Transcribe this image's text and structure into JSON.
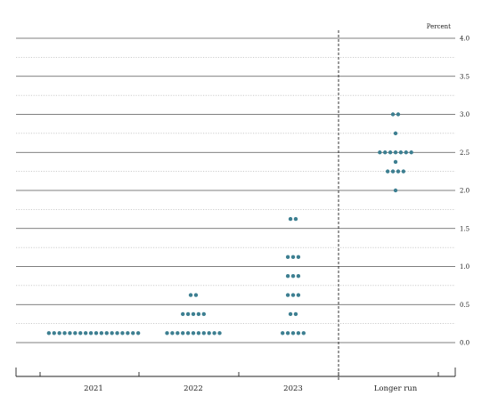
{
  "chart_data": {
    "type": "scatter",
    "title": "",
    "ylabel": "Percent",
    "ylim": [
      0,
      4
    ],
    "y_ticks": [
      "4.0",
      "3.5",
      "3.0",
      "2.5",
      "2.0",
      "1.5",
      "1.0",
      "0.5",
      "0.0"
    ],
    "grid": true,
    "categories": [
      "2021",
      "2022",
      "2023",
      "Longer run"
    ],
    "dot_color": "#3d7f91",
    "dots": [
      {
        "category": "2021",
        "y": 0.125,
        "count": 18
      },
      {
        "category": "2022",
        "y": 0.125,
        "count": 11
      },
      {
        "category": "2022",
        "y": 0.375,
        "count": 5
      },
      {
        "category": "2022",
        "y": 0.625,
        "count": 2
      },
      {
        "category": "2023",
        "y": 0.125,
        "count": 5
      },
      {
        "category": "2023",
        "y": 0.375,
        "count": 2
      },
      {
        "category": "2023",
        "y": 0.625,
        "count": 3
      },
      {
        "category": "2023",
        "y": 0.875,
        "count": 3
      },
      {
        "category": "2023",
        "y": 1.125,
        "count": 3
      },
      {
        "category": "2023",
        "y": 1.625,
        "count": 2
      },
      {
        "category": "Longer run",
        "y": 2.0,
        "count": 1
      },
      {
        "category": "Longer run",
        "y": 2.25,
        "count": 4
      },
      {
        "category": "Longer run",
        "y": 2.375,
        "count": 1
      },
      {
        "category": "Longer run",
        "y": 2.5,
        "count": 7
      },
      {
        "category": "Longer run",
        "y": 2.75,
        "count": 1
      },
      {
        "category": "Longer run",
        "y": 3.0,
        "count": 2
      }
    ]
  }
}
